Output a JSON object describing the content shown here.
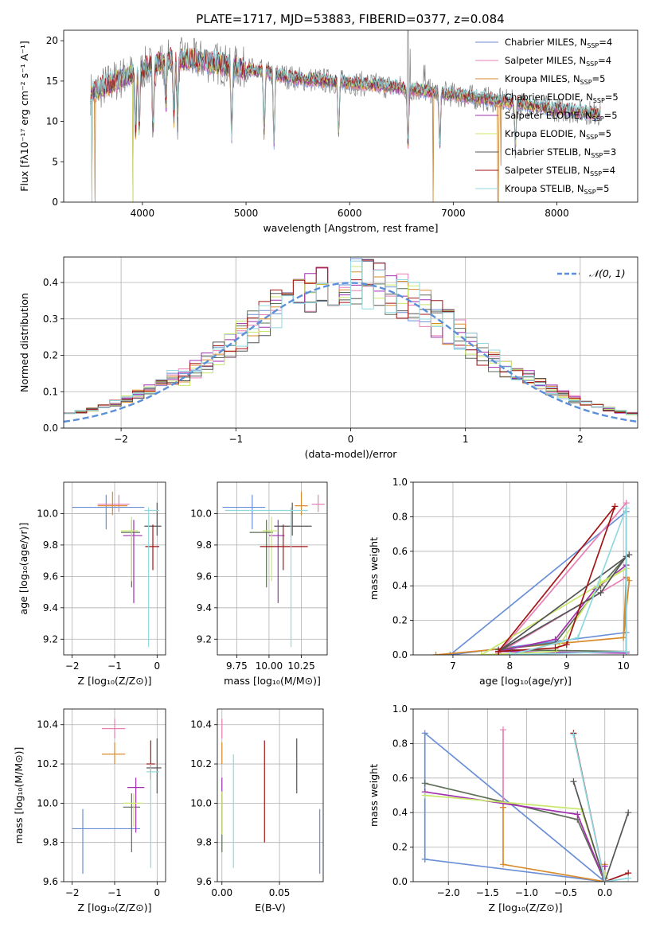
{
  "title": "PLATE=1717, MJD=53883, FIBERID=0377, z=0.084",
  "colors": [
    "#6a8fd6",
    "#e87fb5",
    "#d98a2b",
    "#5f6e57",
    "#a12fb0",
    "#c8e86b",
    "#555555",
    "#a31515",
    "#8fd8e0"
  ],
  "series_labels": [
    {
      "base": "Chabrier MILES, N",
      "sub": "SSP",
      "tail": "=4"
    },
    {
      "base": "Salpeter MILES, N",
      "sub": "SSP",
      "tail": "=4"
    },
    {
      "base": "Kroupa MILES, N",
      "sub": "SSP",
      "tail": "=5"
    },
    {
      "base": "Chabrier ELODIE, N",
      "sub": "SSP",
      "tail": "=5"
    },
    {
      "base": "Salpeter ELODIE, N",
      "sub": "SSP",
      "tail": "=5"
    },
    {
      "base": "Kroupa ELODIE, N",
      "sub": "SSP",
      "tail": "=5"
    },
    {
      "base": "Chabrier STELIB, N",
      "sub": "SSP",
      "tail": "=3"
    },
    {
      "base": "Salpeter STELIB, N",
      "sub": "SSP",
      "tail": "=4"
    },
    {
      "base": "Kroupa STELIB, N",
      "sub": "SSP",
      "tail": "=5"
    }
  ],
  "chart_data": [
    {
      "type": "line",
      "panel": "spectrum",
      "xlabel": "wavelength [Angstrom, rest frame]",
      "ylabel": "Flux [fλ10⁻¹⁷ erg cm⁻² s⁻¹ A⁻¹]",
      "xlim": [
        3240,
        8780
      ],
      "ylim": [
        0,
        21.3
      ],
      "xticks": [
        4000,
        5000,
        6000,
        7000,
        8000
      ],
      "yticks": [
        0,
        5,
        10,
        15,
        20
      ],
      "grid": false,
      "legend": "top-right",
      "continuum": [
        [
          3500,
          13.5
        ],
        [
          3700,
          14.8
        ],
        [
          4000,
          16.5
        ],
        [
          4300,
          17.8
        ],
        [
          4600,
          17.5
        ],
        [
          5000,
          16.5
        ],
        [
          5500,
          15.3
        ],
        [
          6000,
          14.8
        ],
        [
          6500,
          14.2
        ],
        [
          7000,
          13.3
        ],
        [
          7500,
          12.5
        ],
        [
          8000,
          11.5
        ],
        [
          8400,
          11.0
        ]
      ],
      "absorption_dips": [
        [
          3934,
          0.2
        ],
        [
          3969,
          0.3
        ],
        [
          4102,
          0.2
        ],
        [
          4226,
          0.5
        ],
        [
          4304,
          0.3
        ],
        [
          4340,
          0.25
        ],
        [
          4861,
          0.15
        ],
        [
          5175,
          0.2
        ],
        [
          5270,
          0.1
        ],
        [
          5893,
          0.25
        ],
        [
          6563,
          0.15
        ],
        [
          6870,
          0.2
        ],
        [
          7600,
          0.25
        ]
      ],
      "emission_spikes": [
        [
          6563,
          21.3
        ],
        [
          6583,
          19.0
        ],
        [
          6717,
          17.0
        ],
        [
          6730,
          17.0
        ]
      ],
      "dropouts": [
        [
          3513,
          0
        ],
        [
          3540,
          0
        ],
        [
          3910,
          0
        ],
        [
          6805,
          0
        ],
        [
          7433,
          0
        ],
        [
          7460,
          4.5
        ]
      ]
    },
    {
      "type": "histogram",
      "panel": "residuals",
      "xlabel": "(data-model)/error",
      "ylabel": "Normed distribution",
      "xlim": [
        -2.5,
        2.5
      ],
      "ylim": [
        0,
        0.47
      ],
      "xticks": [
        -2,
        -1,
        0,
        1,
        2
      ],
      "yticks": [
        0.0,
        0.1,
        0.2,
        0.3,
        0.4
      ],
      "grid": true,
      "legend": "top-right",
      "legend_entry": "𝒩(0, 1)",
      "bin_width": 0.1
    },
    {
      "type": "scatter",
      "panel": "age_vs_Z",
      "xlabel": "Z [log₁₀(Z/Z⊙)]",
      "ylabel": "age  [log₁₀(age/yr)]",
      "xlim": [
        -2.2,
        0.2
      ],
      "ylim": [
        9.1,
        10.2
      ],
      "xticks": [
        -2,
        -1,
        0
      ],
      "yticks": [
        9.2,
        9.4,
        9.6,
        9.8,
        10.0
      ],
      "grid": true,
      "points": [
        {
          "x": -1.2,
          "y": 10.04,
          "xlo": -2.0,
          "xhi": -0.3,
          "ylo": 9.9,
          "yhi": 10.12
        },
        {
          "x": -0.9,
          "y": 10.06,
          "xlo": -1.4,
          "xhi": -0.65,
          "ylo": 10.01,
          "yhi": 10.12
        },
        {
          "x": -1.05,
          "y": 10.05,
          "xlo": -1.4,
          "xhi": -0.7,
          "ylo": 9.99,
          "yhi": 10.14
        },
        {
          "x": -0.6,
          "y": 9.88,
          "xlo": -0.85,
          "xhi": -0.4,
          "ylo": 9.53,
          "yhi": 9.96
        },
        {
          "x": -0.55,
          "y": 9.86,
          "xlo": -0.8,
          "xhi": -0.35,
          "ylo": 9.43,
          "yhi": 9.96
        },
        {
          "x": -0.6,
          "y": 9.89,
          "xlo": -0.85,
          "xhi": -0.45,
          "ylo": 9.57,
          "yhi": 9.98
        },
        {
          "x": 0.0,
          "y": 9.92,
          "xlo": -0.3,
          "xhi": 0.1,
          "ylo": 9.86,
          "yhi": 10.07
        },
        {
          "x": -0.1,
          "y": 9.79,
          "xlo": -0.28,
          "xhi": 0.05,
          "ylo": 9.64,
          "yhi": 9.93
        },
        {
          "x": -0.2,
          "y": 10.02,
          "xlo": -0.3,
          "xhi": 0.05,
          "ylo": 9.15,
          "yhi": 10.04
        }
      ]
    },
    {
      "type": "scatter",
      "panel": "age_vs_mass",
      "xlabel": "mass [log₁₀(M/M⊙)]",
      "ylabel": "",
      "xlim": [
        9.6,
        10.45
      ],
      "ylim": [
        9.1,
        10.2
      ],
      "xticks": [
        9.75,
        10.0,
        10.25
      ],
      "tick_labels": [
        "9.75",
        "10.00",
        "10.25"
      ],
      "yticks": [
        9.2,
        9.4,
        9.6,
        9.8,
        10.0
      ],
      "grid": true,
      "points": [
        {
          "x": 9.87,
          "y": 10.04,
          "xlo": 9.64,
          "xhi": 9.97,
          "ylo": 9.9,
          "yhi": 10.12
        },
        {
          "x": 10.38,
          "y": 10.06,
          "xlo": 10.33,
          "xhi": 10.43,
          "ylo": 10.01,
          "yhi": 10.12
        },
        {
          "x": 10.25,
          "y": 10.05,
          "xlo": 10.2,
          "xhi": 10.3,
          "ylo": 9.99,
          "yhi": 10.14
        },
        {
          "x": 9.98,
          "y": 9.88,
          "xlo": 9.85,
          "xhi": 10.03,
          "ylo": 9.53,
          "yhi": 9.96
        },
        {
          "x": 10.07,
          "y": 9.86,
          "xlo": 10.0,
          "xhi": 10.12,
          "ylo": 9.43,
          "yhi": 9.96
        },
        {
          "x": 10.02,
          "y": 9.89,
          "xlo": 9.95,
          "xhi": 10.07,
          "ylo": 9.57,
          "yhi": 9.98
        },
        {
          "x": 10.18,
          "y": 9.92,
          "xlo": 10.04,
          "xhi": 10.33,
          "ylo": 9.86,
          "yhi": 10.07
        },
        {
          "x": 10.11,
          "y": 9.79,
          "xlo": 9.93,
          "xhi": 10.3,
          "ylo": 9.64,
          "yhi": 9.93
        },
        {
          "x": 10.17,
          "y": 10.02,
          "xlo": 9.66,
          "xhi": 10.3,
          "ylo": 9.15,
          "yhi": 10.04
        }
      ]
    },
    {
      "type": "line",
      "panel": "weight_vs_age",
      "xlabel": "age  [log₁₀(age/yr)]",
      "ylabel": "mass weight",
      "xlim": [
        6.3,
        10.25
      ],
      "ylim": [
        0,
        1.0
      ],
      "xticks": [
        7,
        8,
        9,
        10
      ],
      "yticks": [
        0.0,
        0.2,
        0.4,
        0.6,
        0.8,
        1.0
      ],
      "grid": true,
      "series": [
        {
          "points": [
            [
              6.95,
              0.0
            ],
            [
              10.05,
              0.83
            ],
            [
              10.05,
              0.13
            ],
            [
              6.95,
              0.0
            ]
          ]
        },
        {
          "points": [
            [
              7.8,
              0.01
            ],
            [
              10.05,
              0.88
            ],
            [
              10.05,
              0.45
            ],
            [
              7.8,
              0.01
            ]
          ]
        },
        {
          "points": [
            [
              6.7,
              0.0
            ],
            [
              10.0,
              0.1
            ],
            [
              10.05,
              0.45
            ],
            [
              10.1,
              0.43
            ],
            [
              10.0,
              0.1
            ],
            [
              6.7,
              0.0
            ]
          ]
        },
        {
          "points": [
            [
              7.8,
              0.03
            ],
            [
              8.8,
              0.07
            ],
            [
              9.6,
              0.4
            ],
            [
              10.05,
              0.57
            ],
            [
              10.05,
              0.02
            ],
            [
              7.8,
              0.03
            ]
          ]
        },
        {
          "points": [
            [
              7.8,
              0.02
            ],
            [
              8.8,
              0.09
            ],
            [
              9.5,
              0.38
            ],
            [
              10.05,
              0.52
            ],
            [
              10.05,
              0.01
            ],
            [
              7.8,
              0.02
            ]
          ]
        },
        {
          "points": [
            [
              7.5,
              0.0
            ],
            [
              8.8,
              0.02
            ],
            [
              9.6,
              0.42
            ],
            [
              10.05,
              0.5
            ],
            [
              7.5,
              0.0
            ]
          ]
        },
        {
          "points": [
            [
              7.8,
              0.02
            ],
            [
              9.6,
              0.36
            ],
            [
              10.05,
              0.57
            ],
            [
              10.1,
              0.58
            ],
            [
              7.8,
              0.02
            ]
          ]
        },
        {
          "points": [
            [
              7.8,
              0.02
            ],
            [
              8.8,
              0.04
            ],
            [
              9.0,
              0.06
            ],
            [
              9.85,
              0.86
            ],
            [
              7.8,
              0.02
            ]
          ]
        },
        {
          "points": [
            [
              8.0,
              0.0
            ],
            [
              9.2,
              0.1
            ],
            [
              10.05,
              0.85
            ],
            [
              10.05,
              0.02
            ],
            [
              8.0,
              0.0
            ]
          ]
        }
      ]
    },
    {
      "type": "scatter",
      "panel": "mass_vs_Z",
      "xlabel": "Z [log₁₀(Z/Z⊙)]",
      "ylabel": "mass [log₁₀(M/M⊙)]",
      "xlim": [
        -2.2,
        0.2
      ],
      "ylim": [
        9.6,
        10.48
      ],
      "xticks": [
        -2,
        -1,
        0
      ],
      "yticks": [
        9.6,
        9.8,
        10.0,
        10.2,
        10.4
      ],
      "grid": true,
      "points": [
        {
          "x": -1.75,
          "y": 9.87,
          "xlo": -2.0,
          "xhi": -0.4,
          "ylo": 9.64,
          "yhi": 9.97
        },
        {
          "x": -1.0,
          "y": 10.38,
          "xlo": -1.3,
          "xhi": -0.75,
          "ylo": 10.33,
          "yhi": 10.43
        },
        {
          "x": -1.0,
          "y": 10.25,
          "xlo": -1.3,
          "xhi": -0.75,
          "ylo": 10.2,
          "yhi": 10.31
        },
        {
          "x": -0.6,
          "y": 9.98,
          "xlo": -0.8,
          "xhi": -0.4,
          "ylo": 9.75,
          "yhi": 10.05
        },
        {
          "x": -0.5,
          "y": 10.08,
          "xlo": -0.7,
          "xhi": -0.3,
          "ylo": 9.85,
          "yhi": 10.13
        },
        {
          "x": -0.55,
          "y": 10.0,
          "xlo": -0.8,
          "xhi": -0.35,
          "ylo": 9.88,
          "yhi": 10.05
        },
        {
          "x": 0.0,
          "y": 10.18,
          "xlo": -0.25,
          "xhi": 0.1,
          "ylo": 10.05,
          "yhi": 10.33
        },
        {
          "x": -0.15,
          "y": 10.2,
          "xlo": -0.25,
          "xhi": -0.05,
          "ylo": 10.12,
          "yhi": 10.32
        },
        {
          "x": -0.15,
          "y": 10.16,
          "xlo": -0.25,
          "xhi": 0.05,
          "ylo": 9.67,
          "yhi": 10.2
        }
      ]
    },
    {
      "type": "scatter",
      "panel": "mass_vs_EBV",
      "xlabel": "E(B-V)",
      "ylabel": "",
      "xlim": [
        -0.004,
        0.088
      ],
      "ylim": [
        9.6,
        10.48
      ],
      "xticks": [
        0.0,
        0.05
      ],
      "tick_labels": [
        "0.00",
        "0.05"
      ],
      "yticks": [
        9.6,
        9.8,
        10.0,
        10.2,
        10.4
      ],
      "grid": true,
      "points": [
        {
          "x": 0.085,
          "y": 9.8,
          "ylo": 9.64,
          "yhi": 9.97
        },
        {
          "x": 0.0,
          "y": 10.38,
          "ylo": 10.33,
          "yhi": 10.43
        },
        {
          "x": 0.0,
          "y": 10.25,
          "ylo": 10.2,
          "yhi": 10.31
        },
        {
          "x": 0.0,
          "y": 9.9,
          "ylo": 9.75,
          "yhi": 10.05
        },
        {
          "x": 0.0,
          "y": 10.0,
          "ylo": 9.85,
          "yhi": 10.13
        },
        {
          "x": 0.0,
          "y": 9.95,
          "ylo": 9.84,
          "yhi": 10.06
        },
        {
          "x": 0.065,
          "y": 10.18,
          "ylo": 10.05,
          "yhi": 10.33
        },
        {
          "x": 0.037,
          "y": 10.06,
          "ylo": 9.8,
          "yhi": 10.32
        },
        {
          "x": 0.01,
          "y": 9.95,
          "ylo": 9.67,
          "yhi": 10.25
        }
      ]
    },
    {
      "type": "line",
      "panel": "weight_vs_Z",
      "xlabel": "Z [log₁₀(Z/Z⊙)]",
      "ylabel": "mass weight",
      "xlim": [
        -2.45,
        0.42
      ],
      "ylim": [
        0,
        1.0
      ],
      "xticks": [
        -2.0,
        -1.5,
        -1.0,
        -0.5,
        0.0
      ],
      "tick_labels": [
        "−2.0",
        "−1.5",
        "−1.0",
        "−0.5",
        "0.0"
      ],
      "yticks": [
        0.0,
        0.2,
        0.4,
        0.6,
        0.8,
        1.0
      ],
      "grid": true,
      "series": [
        {
          "points": [
            [
              -2.3,
              0.13
            ],
            [
              -2.3,
              0.86
            ],
            [
              0.0,
              0.0
            ],
            [
              -2.3,
              0.13
            ]
          ]
        },
        {
          "points": [
            [
              -1.3,
              0.43
            ],
            [
              -1.3,
              0.88
            ],
            [
              -1.3,
              0.43
            ]
          ]
        },
        {
          "points": [
            [
              -1.3,
              0.43
            ],
            [
              -1.3,
              0.1
            ],
            [
              0.0,
              0.0
            ],
            [
              0.0,
              0.1
            ]
          ]
        },
        {
          "points": [
            [
              -2.3,
              0.57
            ],
            [
              -0.35,
              0.36
            ],
            [
              0.0,
              0.0
            ],
            [
              0.0,
              0.02
            ]
          ]
        },
        {
          "points": [
            [
              -2.3,
              0.52
            ],
            [
              -0.35,
              0.39
            ],
            [
              0.0,
              0.0
            ],
            [
              0.0,
              0.09
            ]
          ]
        },
        {
          "points": [
            [
              -2.3,
              0.5
            ],
            [
              -0.3,
              0.42
            ],
            [
              0.0,
              0.0
            ],
            [
              0.0,
              0.05
            ]
          ]
        },
        {
          "points": [
            [
              -0.4,
              0.58
            ],
            [
              0.0,
              0.0
            ],
            [
              0.3,
              0.4
            ]
          ]
        },
        {
          "points": [
            [
              -0.4,
              0.86
            ],
            [
              0.0,
              0.0
            ],
            [
              0.3,
              0.05
            ]
          ]
        },
        {
          "points": [
            [
              -0.4,
              0.85
            ],
            [
              0.0,
              0.0
            ],
            [
              0.3,
              0.02
            ]
          ]
        }
      ]
    }
  ]
}
